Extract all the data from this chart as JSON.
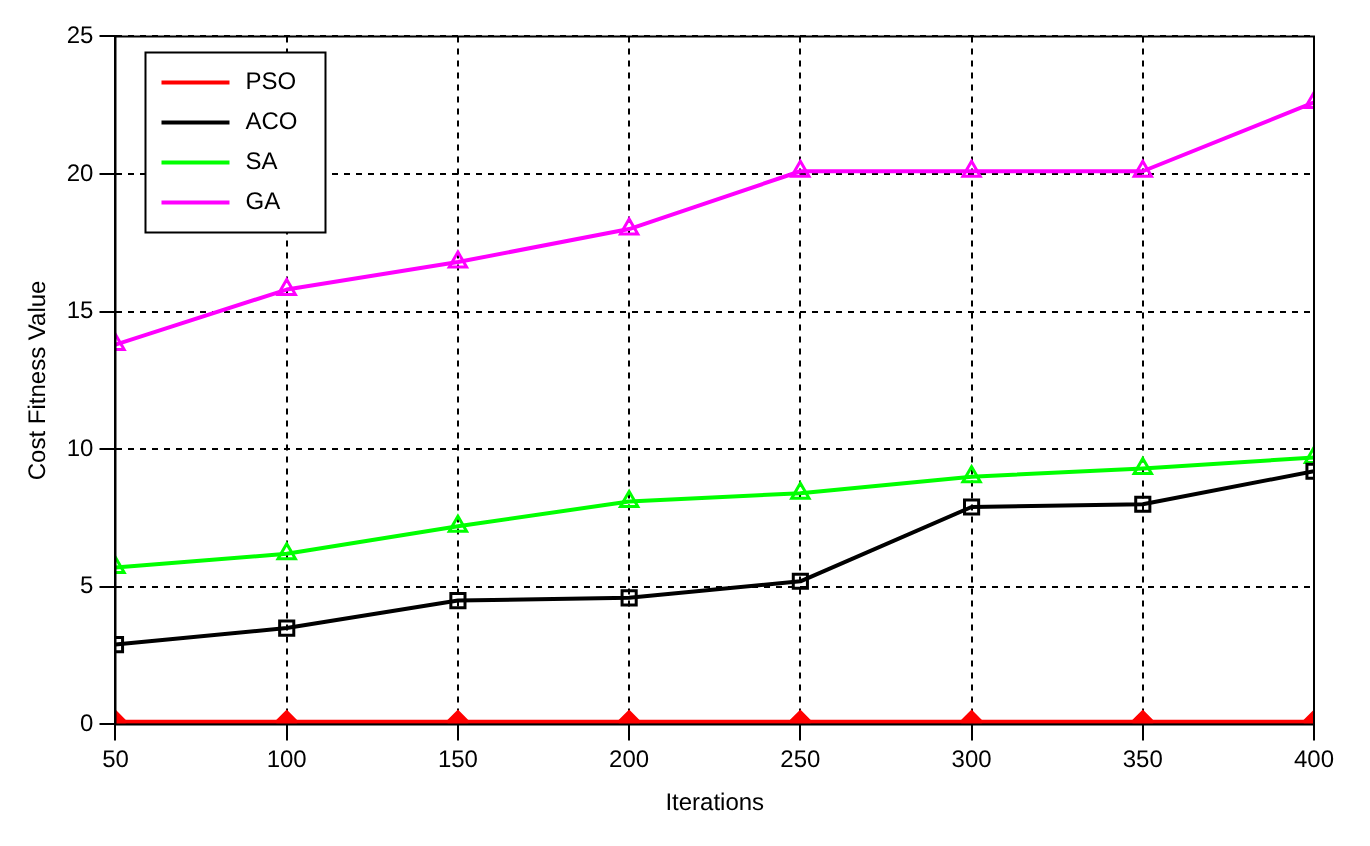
{
  "chart_data": {
    "type": "line",
    "xlabel": "Iterations",
    "ylabel": "Cost Fitness Value",
    "x": [
      50,
      100,
      150,
      200,
      250,
      300,
      350,
      400
    ],
    "xlim": [
      50,
      400
    ],
    "xticks": [
      50,
      100,
      150,
      200,
      250,
      300,
      350,
      400
    ],
    "ylim": [
      0,
      25
    ],
    "yticks": [
      0,
      5,
      10,
      15,
      20,
      25
    ],
    "grid": true,
    "legend": "top left",
    "line_style": "solid",
    "series": [
      {
        "name": "PSO",
        "color": "#ff0000",
        "marker": "diamond",
        "values": [
          0.1,
          0.1,
          0.1,
          0.1,
          0.1,
          0.1,
          0.1,
          0.1
        ]
      },
      {
        "name": "ACO",
        "color": "#000000",
        "marker": "square",
        "values": [
          2.9,
          3.5,
          4.5,
          4.6,
          5.2,
          7.9,
          8.0,
          9.2
        ]
      },
      {
        "name": "SA",
        "color": "#00ff00",
        "marker": "triangle",
        "values": [
          5.7,
          6.2,
          7.2,
          8.1,
          8.4,
          9.0,
          9.3,
          9.7
        ]
      },
      {
        "name": "GA",
        "color": "#ff00ff",
        "marker": "triangle",
        "values": [
          13.8,
          15.8,
          16.8,
          18.0,
          20.1,
          20.1,
          20.1,
          22.6
        ]
      }
    ]
  }
}
